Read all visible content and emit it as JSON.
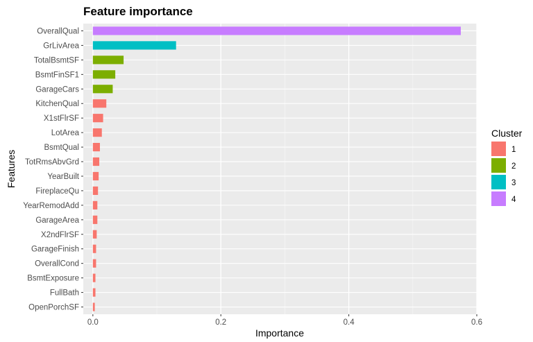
{
  "chart_data": {
    "type": "bar",
    "orientation": "horizontal",
    "title": "Feature importance",
    "xlabel": "Importance",
    "ylabel": "Features",
    "xlim": [
      -0.015,
      0.6
    ],
    "xticks": [
      0.0,
      0.2,
      0.4,
      0.6
    ],
    "xtick_labels": [
      "0.0",
      "0.2",
      "0.4",
      "0.6"
    ],
    "grid": true,
    "legend": {
      "title": "Cluster",
      "position": "right",
      "entries": [
        {
          "label": "1",
          "color": "#F8766D"
        },
        {
          "label": "2",
          "color": "#7CAE00"
        },
        {
          "label": "3",
          "color": "#00BFC4"
        },
        {
          "label": "4",
          "color": "#C77CFF"
        }
      ]
    },
    "categories": [
      "OverallQual",
      "GrLivArea",
      "TotalBsmtSF",
      "BsmtFinSF1",
      "GarageCars",
      "KitchenQual",
      "X1stFlrSF",
      "LotArea",
      "BsmtQual",
      "TotRmsAbvGrd",
      "YearBuilt",
      "FireplaceQu",
      "YearRemodAdd",
      "GarageArea",
      "X2ndFlrSF",
      "GarageFinish",
      "OverallCond",
      "BsmtExposure",
      "FullBath",
      "OpenPorchSF"
    ],
    "values": [
      0.575,
      0.13,
      0.048,
      0.035,
      0.031,
      0.021,
      0.016,
      0.014,
      0.011,
      0.01,
      0.009,
      0.008,
      0.007,
      0.007,
      0.006,
      0.005,
      0.005,
      0.004,
      0.004,
      0.003
    ],
    "clusters": [
      "4",
      "3",
      "2",
      "2",
      "2",
      "1",
      "1",
      "1",
      "1",
      "1",
      "1",
      "1",
      "1",
      "1",
      "1",
      "1",
      "1",
      "1",
      "1",
      "1"
    ]
  }
}
